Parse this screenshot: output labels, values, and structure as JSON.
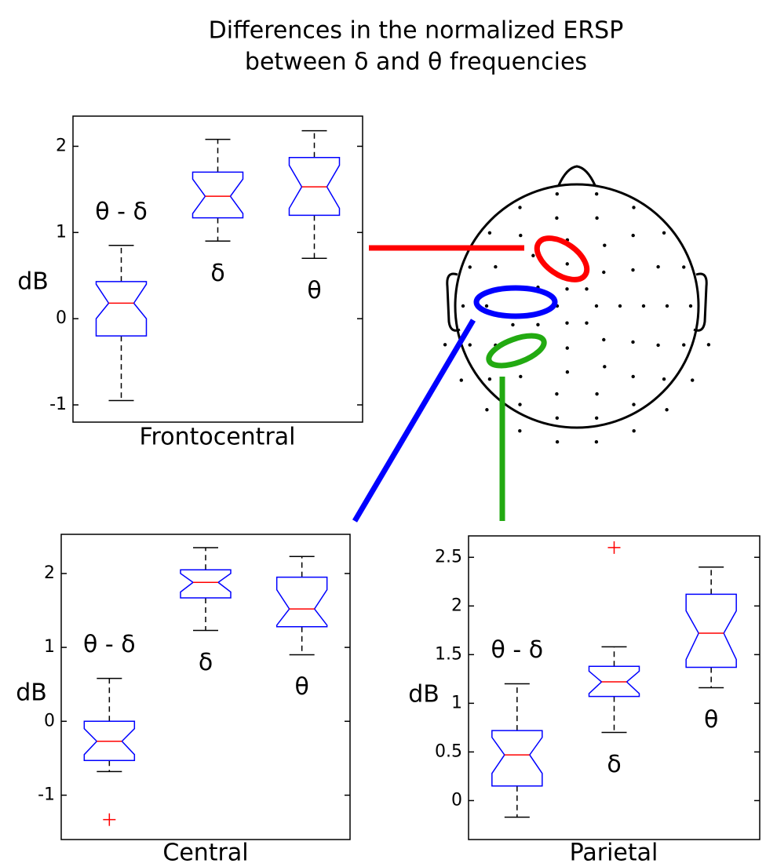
{
  "title": [
    "Differences in the normalized ERSP",
    "between δ and θ frequencies"
  ],
  "chart_data": [
    {
      "type": "box",
      "title": "Frontocentral",
      "ylabel": "dB",
      "categories": [
        "θ - δ",
        "δ",
        "θ"
      ],
      "boxes": [
        {
          "whisker_low": -0.95,
          "q1": -0.2,
          "notch_low": 0,
          "median": 0.18,
          "notch_high": 0.4,
          "q3": 0.43,
          "whisker_high": 0.85,
          "outliers": []
        },
        {
          "whisker_low": 0.9,
          "q1": 1.17,
          "notch_low": 1.22,
          "median": 1.42,
          "notch_high": 1.62,
          "q3": 1.7,
          "whisker_high": 2.08,
          "outliers": []
        },
        {
          "whisker_low": 0.7,
          "q1": 1.2,
          "notch_low": 1.28,
          "median": 1.53,
          "notch_high": 1.78,
          "q3": 1.87,
          "whisker_high": 2.18,
          "outliers": []
        }
      ],
      "ylim": [
        -1.2,
        2.35
      ],
      "yticks": [
        -1,
        0,
        1,
        2
      ],
      "box_color": "#0000ff",
      "median_color": "#ff0000",
      "whisker_color": "#000000",
      "outlier_color": "#ff0000"
    },
    {
      "type": "box",
      "title": "Central",
      "ylabel": "dB",
      "categories": [
        "θ - δ",
        "δ",
        "θ"
      ],
      "boxes": [
        {
          "whisker_low": -0.68,
          "q1": -0.53,
          "notch_low": -0.45,
          "median": -0.27,
          "notch_high": -0.1,
          "q3": 0,
          "whisker_high": 0.58,
          "outliers": [
            -1.33
          ]
        },
        {
          "whisker_low": 1.23,
          "q1": 1.67,
          "notch_low": 1.75,
          "median": 1.88,
          "notch_high": 2.0,
          "q3": 2.05,
          "whisker_high": 2.35,
          "outliers": []
        },
        {
          "whisker_low": 0.9,
          "q1": 1.28,
          "notch_low": 1.3,
          "median": 1.52,
          "notch_high": 1.78,
          "q3": 1.95,
          "whisker_high": 2.23,
          "outliers": []
        }
      ],
      "ylim": [
        -1.6,
        2.53
      ],
      "yticks": [
        -1,
        0,
        1,
        2
      ],
      "box_color": "#0000ff",
      "median_color": "#ff0000",
      "whisker_color": "#000000",
      "outlier_color": "#ff0000"
    },
    {
      "type": "box",
      "title": "Parietal",
      "ylabel": "dB",
      "categories": [
        "θ - δ",
        "δ",
        "θ"
      ],
      "boxes": [
        {
          "whisker_low": -0.17,
          "q1": 0.15,
          "notch_low": 0.28,
          "median": 0.47,
          "notch_high": 0.65,
          "q3": 0.72,
          "whisker_high": 1.2,
          "outliers": []
        },
        {
          "whisker_low": 0.7,
          "q1": 1.07,
          "notch_low": 1.1,
          "median": 1.22,
          "notch_high": 1.33,
          "q3": 1.38,
          "whisker_high": 1.58,
          "outliers": [
            2.6
          ]
        },
        {
          "whisker_low": 1.16,
          "q1": 1.37,
          "notch_low": 1.45,
          "median": 1.72,
          "notch_high": 1.95,
          "q3": 2.12,
          "whisker_high": 2.4,
          "outliers": []
        }
      ],
      "ylim": [
        -0.4,
        2.72
      ],
      "yticks": [
        0,
        0.5,
        1,
        1.5,
        2,
        2.5
      ],
      "box_color": "#0000ff",
      "median_color": "#ff0000",
      "whisker_color": "#000000",
      "outlier_color": "#ff0000"
    }
  ]
}
